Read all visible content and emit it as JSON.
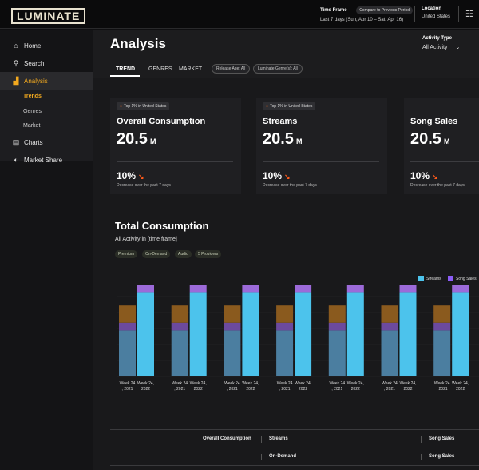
{
  "header": {
    "logo": "LUMINATE",
    "time_frame_label": "Time Frame",
    "compare_chip": "Compare to Previous Period",
    "time_frame_value": "Last 7 days (Sun, Apr 10 – Sat, Apr 16)",
    "location_label": "Location",
    "location_value": "United States"
  },
  "sidebar": {
    "home": "Home",
    "search": "Search",
    "analysis": "Analysis",
    "trends": "Trends",
    "genres": "Genres",
    "market": "Market",
    "charts": "Charts",
    "market_share": "Market Share"
  },
  "page": {
    "title": "Analysis",
    "activity_label": "Activity Type",
    "activity_value": "All Activity",
    "tabs": [
      "TREND",
      "GENRES",
      "MARKET"
    ],
    "filters": [
      "Release Age: All",
      "Luminate Genre(s): All"
    ]
  },
  "cards": [
    {
      "badge": "Top 1% in United States",
      "title": "Overall Consumption",
      "value": "20.5",
      "unit": "M",
      "pct": "10%",
      "note": "Decrease over the past 7 days"
    },
    {
      "badge": "Top 1% in United States",
      "title": "Streams",
      "value": "20.5",
      "unit": "M",
      "pct": "10%",
      "note": "Decrease over the past 7 days"
    },
    {
      "badge": "",
      "title": "Song Sales",
      "value": "20.5",
      "unit": "M",
      "pct": "10%",
      "note": "Decrease over the past 7 days"
    }
  ],
  "consumption": {
    "title": "Total Consumption",
    "subtitle": "All Activity in [time frame]",
    "pills": [
      "Premium",
      "On-Demand",
      "Audio",
      "5 Providers"
    ]
  },
  "chart_data": {
    "type": "bar",
    "categories": [
      "Week 24 , 2021",
      "Week 24, 2022"
    ],
    "groups": 7,
    "series": [
      {
        "name": "Streams",
        "color": "#4cc3ec"
      },
      {
        "name": "Song Sales",
        "color": "#8b5cf6"
      }
    ],
    "stack_colors": {
      "teal": "#4b7ea0",
      "purple": "#6c4a9e",
      "brown": "#8a5a1e",
      "violet": "#9c6ad9",
      "orange": "#f0961c",
      "cyan": "#4cc3ec"
    },
    "bar_2021": {
      "teal": 48,
      "purple": 8,
      "brown": 18
    },
    "bar_2022": {
      "cyan": 88,
      "violet": 9,
      "orange": 7
    }
  },
  "table": {
    "row1": [
      "Overall Consumption",
      "Streams",
      "Song Sales"
    ],
    "row2": [
      "On-Demand",
      "Song Sales"
    ]
  }
}
